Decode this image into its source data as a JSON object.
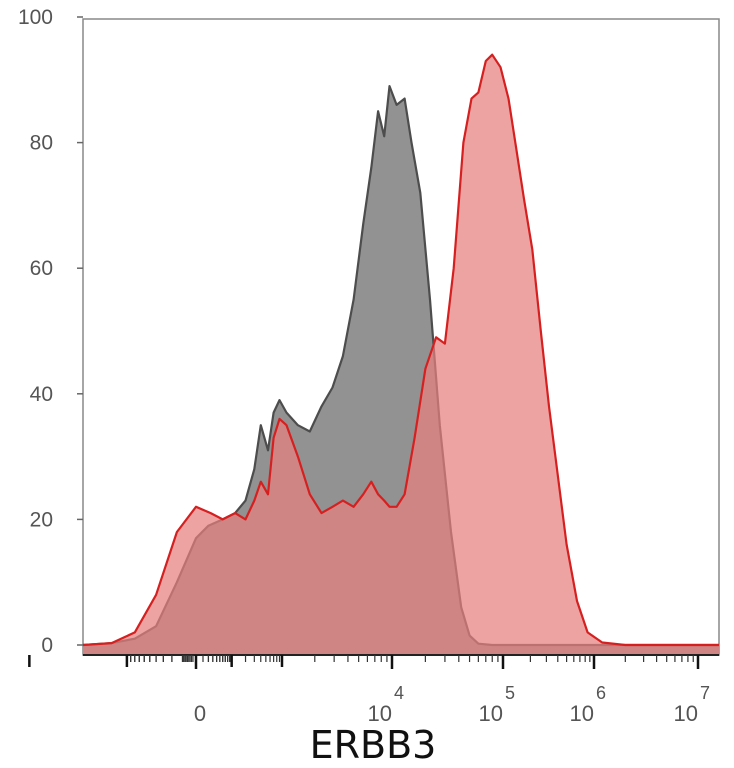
{
  "chart_data": {
    "type": "area",
    "title": "",
    "xlabel": "ERBB3",
    "ylabel": "",
    "x_scale": "biexponential",
    "x_ticks": [
      {
        "value": "0",
        "base": "0",
        "exp": ""
      },
      {
        "value": "10^4",
        "base": "10",
        "exp": "4"
      },
      {
        "value": "10^5",
        "base": "10",
        "exp": "5"
      },
      {
        "value": "10^6",
        "base": "10",
        "exp": "6"
      },
      {
        "value": "10^7",
        "base": "10",
        "exp": "7"
      }
    ],
    "y_ticks": [
      "0",
      "20",
      "40",
      "60",
      "80",
      "100"
    ],
    "ylim": [
      0,
      100
    ],
    "grid": false,
    "legend": "none",
    "series": [
      {
        "color": "#4d4d4d",
        "fill": "#8c8c8c",
        "points": [
          [
            -300,
            0
          ],
          [
            -150,
            0.3
          ],
          [
            -80,
            1
          ],
          [
            -40,
            3
          ],
          [
            -15,
            10
          ],
          [
            0,
            17
          ],
          [
            20,
            19
          ],
          [
            60,
            20
          ],
          [
            120,
            21
          ],
          [
            200,
            23
          ],
          [
            300,
            28
          ],
          [
            400,
            35
          ],
          [
            550,
            31
          ],
          [
            700,
            37
          ],
          [
            900,
            39
          ],
          [
            1100,
            37
          ],
          [
            1400,
            35
          ],
          [
            1800,
            34
          ],
          [
            2300,
            38
          ],
          [
            2900,
            41
          ],
          [
            3600,
            46
          ],
          [
            4500,
            55
          ],
          [
            5500,
            67
          ],
          [
            6500,
            76
          ],
          [
            7500,
            85
          ],
          [
            8500,
            81
          ],
          [
            9500,
            89
          ],
          [
            11000,
            86
          ],
          [
            13000,
            87
          ],
          [
            15000,
            80
          ],
          [
            18000,
            72
          ],
          [
            22000,
            55
          ],
          [
            27000,
            35
          ],
          [
            34000,
            18
          ],
          [
            42000,
            6
          ],
          [
            50000,
            1.5
          ],
          [
            60000,
            0.2
          ],
          [
            80000,
            0
          ],
          [
            20000000,
            0
          ]
        ]
      },
      {
        "color": "#d62020",
        "fill": "#e88080",
        "points": [
          [
            -300,
            0
          ],
          [
            -150,
            0.3
          ],
          [
            -80,
            2
          ],
          [
            -40,
            8
          ],
          [
            -15,
            18
          ],
          [
            0,
            22
          ],
          [
            25,
            21
          ],
          [
            60,
            20
          ],
          [
            120,
            21
          ],
          [
            200,
            20
          ],
          [
            300,
            23
          ],
          [
            400,
            26
          ],
          [
            550,
            24
          ],
          [
            700,
            33
          ],
          [
            900,
            36
          ],
          [
            1100,
            35
          ],
          [
            1400,
            30
          ],
          [
            1800,
            24
          ],
          [
            2300,
            21
          ],
          [
            2900,
            22
          ],
          [
            3600,
            23
          ],
          [
            4500,
            22
          ],
          [
            5500,
            24
          ],
          [
            6500,
            26
          ],
          [
            7500,
            24
          ],
          [
            8500,
            23
          ],
          [
            9500,
            22
          ],
          [
            11000,
            22
          ],
          [
            13000,
            24
          ],
          [
            16000,
            33
          ],
          [
            20000,
            44
          ],
          [
            25000,
            49
          ],
          [
            30000,
            48
          ],
          [
            36000,
            60
          ],
          [
            44000,
            80
          ],
          [
            52000,
            87
          ],
          [
            60000,
            88
          ],
          [
            70000,
            93
          ],
          [
            80000,
            94
          ],
          [
            95000,
            92
          ],
          [
            115000,
            87
          ],
          [
            140000,
            79
          ],
          [
            170000,
            71
          ],
          [
            210000,
            63
          ],
          [
            260000,
            50
          ],
          [
            320000,
            38
          ],
          [
            400000,
            27
          ],
          [
            500000,
            16
          ],
          [
            650000,
            7
          ],
          [
            850000,
            2
          ],
          [
            1200000,
            0.4
          ],
          [
            2000000,
            0
          ],
          [
            20000000,
            0
          ]
        ]
      }
    ]
  }
}
